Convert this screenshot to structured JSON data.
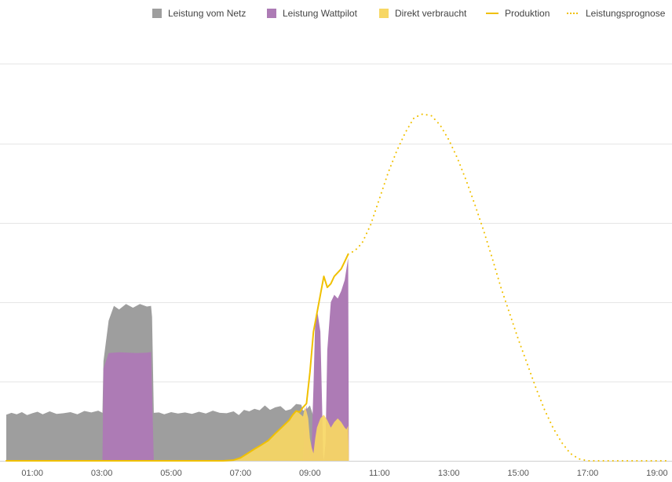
{
  "legend": [
    {
      "label": "Leistung vom Netz",
      "color": "#9e9e9e",
      "kind": "swatch"
    },
    {
      "label": "Leistung Wattpilot",
      "color": "#ad7bb5",
      "kind": "swatch"
    },
    {
      "label": "Direkt verbraucht",
      "color": "#f7d764",
      "kind": "swatch"
    },
    {
      "label": "Produktion",
      "color": "#f0c000",
      "kind": "line"
    },
    {
      "label": "Leistungsprognose",
      "color": "#f0c000",
      "kind": "dotted"
    }
  ],
  "chart_data": {
    "type": "area",
    "x_unit": "hours",
    "xlim": [
      0.25,
      19.25
    ],
    "ylim": [
      0,
      100
    ],
    "grid": true,
    "y_tick_labels_visible": false,
    "legend_position": "top-right",
    "x_ticks": [
      "01:00",
      "03:00",
      "05:00",
      "07:00",
      "09:00",
      "11:00",
      "13:00",
      "15:00",
      "17:00",
      "19:00"
    ],
    "x_tick_values": [
      1,
      3,
      5,
      7,
      9,
      11,
      13,
      15,
      17,
      19
    ],
    "series": [
      {
        "name": "Leistung vom Netz",
        "color": "#9e9e9e",
        "kind": "stack-area",
        "points": [
          [
            0.25,
            12.5
          ],
          [
            0.4,
            13
          ],
          [
            0.55,
            12.6
          ],
          [
            0.7,
            13.2
          ],
          [
            0.85,
            12.4
          ],
          [
            1.0,
            12.9
          ],
          [
            1.15,
            13.3
          ],
          [
            1.3,
            12.6
          ],
          [
            1.5,
            13.4
          ],
          [
            1.7,
            12.7
          ],
          [
            1.9,
            12.9
          ],
          [
            2.1,
            13.2
          ],
          [
            2.3,
            12.6
          ],
          [
            2.5,
            13.5
          ],
          [
            2.7,
            13.1
          ],
          [
            2.9,
            13.6
          ],
          [
            3.02,
            13.0
          ],
          [
            3.05,
            27
          ],
          [
            3.2,
            38
          ],
          [
            3.35,
            42
          ],
          [
            3.5,
            41
          ],
          [
            3.7,
            42.5
          ],
          [
            3.9,
            41.5
          ],
          [
            4.1,
            42.5
          ],
          [
            4.3,
            41.8
          ],
          [
            4.42,
            42
          ],
          [
            4.45,
            39
          ],
          [
            4.5,
            13
          ],
          [
            4.65,
            13.1
          ],
          [
            4.8,
            12.6
          ],
          [
            5.0,
            13.2
          ],
          [
            5.2,
            12.8
          ],
          [
            5.4,
            13.1
          ],
          [
            5.6,
            12.7
          ],
          [
            5.8,
            13.3
          ],
          [
            6.0,
            12.8
          ],
          [
            6.2,
            13.6
          ],
          [
            6.4,
            13.0
          ],
          [
            6.6,
            12.9
          ],
          [
            6.8,
            13.4
          ],
          [
            6.95,
            12.4
          ],
          [
            7.1,
            13.8
          ],
          [
            7.25,
            13.4
          ],
          [
            7.4,
            14.1
          ],
          [
            7.55,
            13.7
          ],
          [
            7.7,
            15.0
          ],
          [
            7.85,
            13.8
          ],
          [
            8.0,
            14.5
          ],
          [
            8.15,
            14.8
          ],
          [
            8.3,
            13.6
          ],
          [
            8.45,
            14.0
          ],
          [
            8.6,
            15.4
          ],
          [
            8.75,
            15.2
          ],
          [
            8.8,
            13.6
          ],
          [
            8.9,
            14.0
          ],
          [
            9.0,
            15.0
          ],
          [
            9.1,
            12.0
          ],
          [
            9.15,
            0
          ]
        ]
      },
      {
        "name": "Leistung Wattpilot",
        "color": "#ad7bb5",
        "kind": "stack-area",
        "points": [
          [
            3.02,
            0
          ],
          [
            3.05,
            25
          ],
          [
            3.2,
            29.2
          ],
          [
            3.5,
            29.4
          ],
          [
            4.0,
            29.2
          ],
          [
            4.3,
            29.3
          ],
          [
            4.42,
            29.5
          ],
          [
            4.5,
            0
          ],
          [
            8.8,
            0
          ],
          [
            8.85,
            12
          ],
          [
            8.9,
            15
          ],
          [
            8.95,
            10
          ],
          [
            9.0,
            0
          ],
          [
            9.05,
            5
          ],
          [
            9.1,
            20
          ],
          [
            9.15,
            38
          ],
          [
            9.22,
            40
          ],
          [
            9.3,
            35
          ],
          [
            9.35,
            15
          ],
          [
            9.38,
            2
          ],
          [
            9.4,
            0
          ],
          [
            9.45,
            5
          ],
          [
            9.5,
            30
          ],
          [
            9.6,
            43
          ],
          [
            9.7,
            45
          ],
          [
            9.8,
            44
          ],
          [
            9.9,
            46
          ],
          [
            10.0,
            49
          ],
          [
            10.05,
            52
          ],
          [
            10.1,
            55
          ],
          [
            10.12,
            0
          ]
        ]
      },
      {
        "name": "Direkt verbraucht",
        "color": "#f7d764",
        "kind": "area",
        "points": [
          [
            6.5,
            0
          ],
          [
            6.8,
            0.2
          ],
          [
            7.0,
            0.8
          ],
          [
            7.2,
            2.0
          ],
          [
            7.4,
            3.2
          ],
          [
            7.6,
            4.3
          ],
          [
            7.8,
            5.5
          ],
          [
            8.0,
            7.4
          ],
          [
            8.2,
            9.2
          ],
          [
            8.4,
            11.0
          ],
          [
            8.5,
            12.4
          ],
          [
            8.6,
            13.5
          ],
          [
            8.7,
            12.8
          ],
          [
            8.8,
            12.0
          ],
          [
            8.85,
            14.5
          ],
          [
            8.9,
            13.5
          ],
          [
            8.95,
            11.5
          ],
          [
            9.0,
            6.0
          ],
          [
            9.05,
            3.5
          ],
          [
            9.1,
            2.0
          ],
          [
            9.15,
            6
          ],
          [
            9.2,
            9
          ],
          [
            9.3,
            11.5
          ],
          [
            9.4,
            12.5
          ],
          [
            9.5,
            11.0
          ],
          [
            9.6,
            9.0
          ],
          [
            9.7,
            10.5
          ],
          [
            9.8,
            11.5
          ],
          [
            9.9,
            10.5
          ],
          [
            10.0,
            9.0
          ],
          [
            10.05,
            8.5
          ],
          [
            10.1,
            9.5
          ],
          [
            10.12,
            0
          ]
        ]
      },
      {
        "name": "Produktion",
        "color": "#f0c000",
        "kind": "line",
        "points": [
          [
            0.25,
            0
          ],
          [
            6.5,
            0
          ],
          [
            6.8,
            0.2
          ],
          [
            7.0,
            0.8
          ],
          [
            7.2,
            2.0
          ],
          [
            7.4,
            3.2
          ],
          [
            7.6,
            4.3
          ],
          [
            7.8,
            5.5
          ],
          [
            8.0,
            7.4
          ],
          [
            8.2,
            9.2
          ],
          [
            8.4,
            11.0
          ],
          [
            8.5,
            12.4
          ],
          [
            8.6,
            13.5
          ],
          [
            8.7,
            13.2
          ],
          [
            8.8,
            14.5
          ],
          [
            8.9,
            15.5
          ],
          [
            9.0,
            24
          ],
          [
            9.1,
            35
          ],
          [
            9.2,
            40
          ],
          [
            9.3,
            45
          ],
          [
            9.4,
            50
          ],
          [
            9.5,
            47
          ],
          [
            9.6,
            48
          ],
          [
            9.7,
            50
          ],
          [
            9.8,
            51
          ],
          [
            9.9,
            52
          ],
          [
            10.0,
            54
          ],
          [
            10.1,
            56
          ]
        ]
      },
      {
        "name": "Leistungsprognose",
        "color": "#f0c000",
        "kind": "dotted",
        "points": [
          [
            10.1,
            56
          ],
          [
            10.3,
            57
          ],
          [
            10.5,
            59
          ],
          [
            10.75,
            64
          ],
          [
            11.0,
            71
          ],
          [
            11.25,
            78
          ],
          [
            11.5,
            84
          ],
          [
            11.75,
            89
          ],
          [
            12.0,
            93
          ],
          [
            12.25,
            94
          ],
          [
            12.5,
            93.5
          ],
          [
            12.75,
            91
          ],
          [
            13.0,
            87
          ],
          [
            13.25,
            82
          ],
          [
            13.5,
            76
          ],
          [
            13.75,
            69.5
          ],
          [
            14.0,
            62.5
          ],
          [
            14.25,
            55
          ],
          [
            14.5,
            47
          ],
          [
            14.75,
            40
          ],
          [
            15.0,
            33
          ],
          [
            15.25,
            26.5
          ],
          [
            15.5,
            20
          ],
          [
            15.75,
            14
          ],
          [
            16.0,
            9
          ],
          [
            16.25,
            5
          ],
          [
            16.5,
            2
          ],
          [
            16.75,
            0.5
          ],
          [
            17.0,
            0
          ],
          [
            18.0,
            0
          ],
          [
            19.25,
            0
          ]
        ]
      }
    ]
  }
}
